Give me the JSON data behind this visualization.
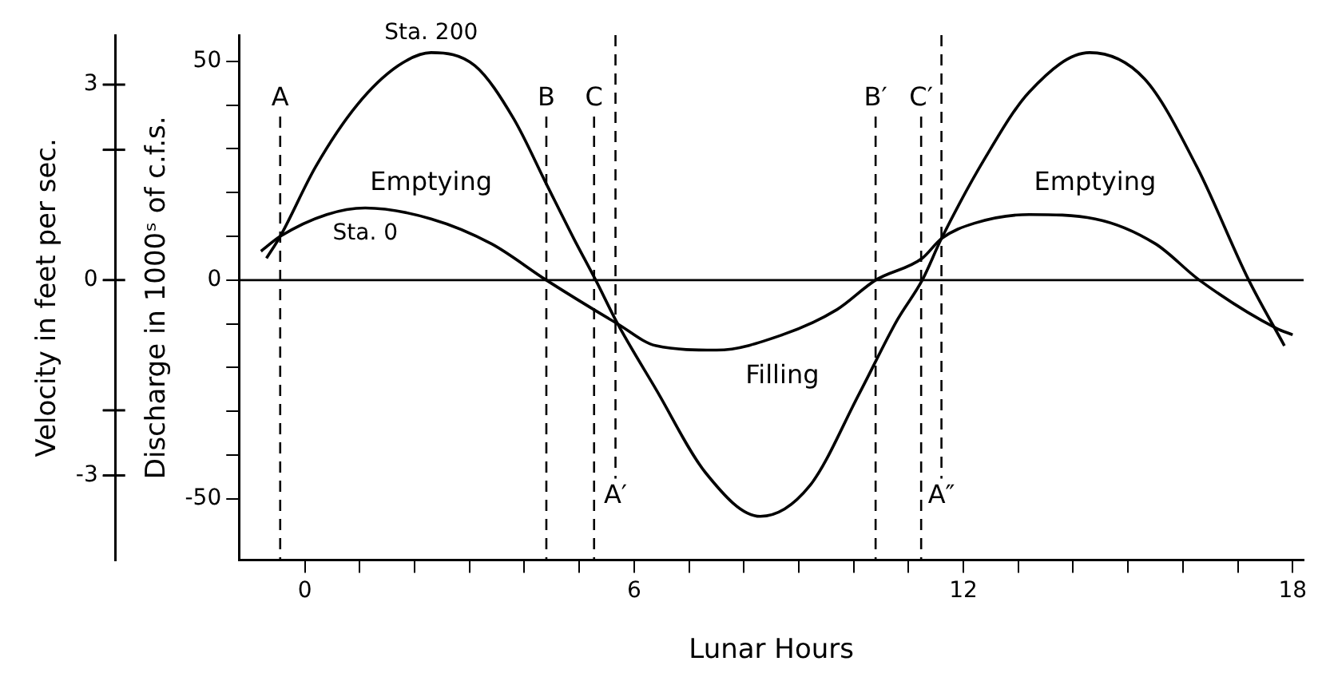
{
  "chart_data": {
    "type": "line",
    "xlabel": "Lunar Hours",
    "ylabel": "Discharge in 1000ˢ of c.f.s.",
    "y2label": "Velocity in feet per sec.",
    "xlim": [
      -1.2,
      18.2
    ],
    "xticks": [
      0,
      {
        "value": 1,
        "label": null
      },
      {
        "value": 2,
        "label": null
      },
      {
        "value": 3,
        "label": null
      },
      {
        "value": 4,
        "label": null
      },
      {
        "value": 5,
        "label": null
      },
      6,
      {
        "value": 7,
        "label": null
      },
      {
        "value": 8,
        "label": null
      },
      {
        "value": 9,
        "label": null
      },
      {
        "value": 10,
        "label": null
      },
      {
        "value": 11,
        "label": null
      },
      12,
      {
        "value": 13,
        "label": null
      },
      {
        "value": 14,
        "label": null
      },
      {
        "value": 15,
        "label": null
      },
      {
        "value": 16,
        "label": null
      },
      {
        "value": 17,
        "label": null
      },
      18
    ],
    "ylim": [
      -64,
      56
    ],
    "yticks": [
      -50,
      {
        "value": -40,
        "label": null
      },
      {
        "value": -30,
        "label": null
      },
      {
        "value": -20,
        "label": null
      },
      {
        "value": -10,
        "label": null
      },
      0,
      {
        "value": 10,
        "label": null
      },
      {
        "value": 20,
        "label": null
      },
      {
        "value": 30,
        "label": null
      },
      {
        "value": 40,
        "label": null
      },
      50
    ],
    "y2lim": [
      -4.3,
      3.76
    ],
    "y2ticks": [
      -3,
      {
        "value": -2,
        "label": null
      },
      0,
      {
        "value": 2,
        "label": null
      },
      3
    ],
    "marker": "none",
    "line_style": "solid",
    "series": [
      {
        "name": "Sta. 200",
        "color": "#000000",
        "x": [
          -0.7,
          -0.45,
          0.2,
          0.95,
          1.7,
          2.3,
          3.1,
          3.8,
          4.4,
          4.9,
          5.3,
          5.7,
          6.4,
          7.3,
          8.3,
          9.2,
          10.1,
          10.8,
          11.25,
          11.6,
          12.4,
          13.2,
          14.3,
          15.3,
          16.25,
          17.2,
          17.85
        ],
        "values": [
          5,
          10,
          26,
          40,
          49,
          52,
          49,
          37,
          22,
          9.5,
          0,
          -10,
          -25,
          -44,
          -54,
          -47,
          -26,
          -9,
          0,
          9.5,
          28,
          43,
          52,
          46,
          26,
          0,
          -15
        ]
      },
      {
        "name": "Sta. 0",
        "color": "#000000",
        "x": [
          -0.8,
          -0.45,
          0.4,
          1.1,
          2.3,
          3.4,
          4.4,
          5.7,
          6.4,
          7.5,
          8.7,
          9.7,
          10.4,
          11.25,
          11.6,
          12.2,
          13.2,
          14.4,
          15.5,
          16.3,
          17.7,
          18.0
        ],
        "values": [
          6.6,
          10,
          15,
          16.5,
          14,
          8.3,
          0,
          -10,
          -15,
          -16,
          -12.5,
          -6.7,
          0,
          5,
          9.5,
          13,
          15,
          14,
          8.3,
          0,
          -11,
          -12.5
        ]
      }
    ],
    "ref_lines": [
      {
        "axis": "y",
        "value": 0,
        "color": "#000000",
        "line_style": "solid"
      },
      {
        "axis": "x",
        "value": -0.45,
        "label": "A",
        "color": "#000000",
        "line_style": "dashed"
      },
      {
        "axis": "x",
        "value": 4.4,
        "label": "B",
        "color": "#000000",
        "line_style": "dashed"
      },
      {
        "axis": "x",
        "value": 5.27,
        "label": "C",
        "color": "#000000",
        "line_style": "dashed"
      },
      {
        "axis": "x",
        "value": 5.66,
        "label": "A′",
        "color": "#000000",
        "line_style": "dashed"
      },
      {
        "axis": "x",
        "value": 10.4,
        "label": "B′",
        "color": "#000000",
        "line_style": "dashed"
      },
      {
        "axis": "x",
        "value": 11.23,
        "label": "C′",
        "color": "#000000",
        "line_style": "dashed"
      },
      {
        "axis": "x",
        "value": 11.6,
        "label": "A″",
        "color": "#000000",
        "line_style": "dashed"
      }
    ],
    "annotations": [
      {
        "text": "Emptying",
        "x": 2.3,
        "y": 14
      },
      {
        "text": "Filling",
        "x": 8.7,
        "y": -12.5
      },
      {
        "text": "Emptying",
        "x": 14.4,
        "y": 14
      }
    ]
  }
}
